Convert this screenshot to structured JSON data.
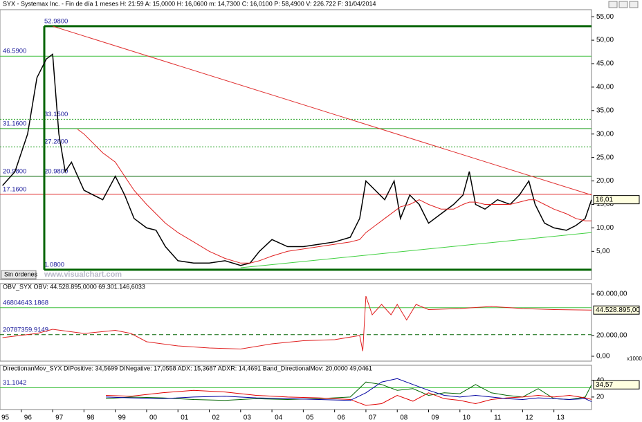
{
  "ui": {
    "button": "Sin órdenes",
    "watermark": "www.visualchart.com",
    "scale_note": "x1000"
  },
  "chart_data": [
    {
      "type": "line",
      "title": "SYX - Systemax Inc. - Fin de día 1 meses  H: 21:59  A: 15,0000  H: 16,0600  m: 14,7300  C: 16,0100  P: 58,4900  V: 226.722  F: 31/04/2014",
      "xlim": [
        1995.32,
        2014.2
      ],
      "ylim": [
        -1,
        56.5
      ],
      "yticks": [
        {
          "value": 55,
          "label": "55,00"
        },
        {
          "value": 50,
          "label": "50,00"
        },
        {
          "value": 45,
          "label": "45,00"
        },
        {
          "value": 40,
          "label": "40,00"
        },
        {
          "value": 35,
          "label": "35,00"
        },
        {
          "value": 30,
          "label": "30,00"
        },
        {
          "value": 25,
          "label": "25,00"
        },
        {
          "value": 20,
          "label": "20,00"
        },
        {
          "value": 15,
          "label": "15,00"
        },
        {
          "value": 10,
          "label": "10,00"
        },
        {
          "value": 5,
          "label": "5,00"
        }
      ],
      "x": [
        1995.4,
        1995.8,
        1996.2,
        1996.5,
        1996.8,
        1997.0,
        1997.2,
        1997.4,
        1997.6,
        1997.8,
        1998.0,
        1998.3,
        1998.6,
        1999.0,
        1999.3,
        1999.6,
        2000.0,
        2000.3,
        2000.6,
        2001.0,
        2001.5,
        2002.0,
        2002.5,
        2003.0,
        2003.3,
        2003.6,
        2004.0,
        2004.5,
        2005.0,
        2005.5,
        2006.0,
        2006.5,
        2006.8,
        2007.0,
        2007.3,
        2007.6,
        2007.9,
        2008.1,
        2008.4,
        2008.7,
        2009.0,
        2009.4,
        2009.8,
        2010.1,
        2010.3,
        2010.5,
        2010.8,
        2011.2,
        2011.6,
        2011.9,
        2012.2,
        2012.4,
        2012.7,
        2013.0,
        2013.4,
        2013.7,
        2014.0,
        2014.2
      ],
      "series": [
        {
          "color": "#000000",
          "values": [
            19,
            22,
            30,
            42,
            46,
            47,
            30,
            22,
            24,
            21,
            18,
            17,
            16,
            21,
            17,
            12,
            10,
            9.5,
            6,
            3,
            2.5,
            2.5,
            3,
            2,
            2.5,
            5,
            7.5,
            6,
            6,
            6.5,
            7,
            8,
            12,
            20,
            18,
            16,
            20,
            12,
            17,
            15,
            11,
            13,
            15,
            17,
            22,
            15,
            14,
            16,
            15,
            17,
            20,
            15,
            11,
            10,
            9.5,
            10.5,
            12,
            16
          ]
        },
        {
          "color": "#e02020",
          "values": [
            null,
            null,
            null,
            null,
            null,
            null,
            null,
            null,
            null,
            31,
            30,
            28,
            26,
            24,
            21,
            18,
            15,
            13,
            11,
            9,
            7,
            5,
            3.5,
            2.5,
            2.5,
            3,
            4,
            5,
            5.5,
            6,
            6.5,
            7,
            7.5,
            9,
            10.5,
            12,
            13.5,
            14.5,
            15,
            16,
            15,
            14,
            14,
            15,
            15.5,
            15.5,
            15,
            15,
            15,
            15.5,
            16,
            16,
            15,
            14,
            13,
            12,
            11.5,
            11.5
          ]
        }
      ],
      "levels": [
        {
          "value": 52.98,
          "label": "52.9800",
          "color": "#006400",
          "style": "box"
        },
        {
          "value": 46.59,
          "label": "46.5900",
          "color": "#40c040",
          "style": "solid"
        },
        {
          "value": 33.15,
          "label": "33.1500",
          "color": "#20a020",
          "style": "dotted"
        },
        {
          "value": 31.16,
          "label": "31.1600",
          "color": "#20a020",
          "style": "solid"
        },
        {
          "value": 27.28,
          "label": "27.2800",
          "color": "#20a020",
          "style": "dotted"
        },
        {
          "value": 20.98,
          "label": "20.9800",
          "color": "#006400",
          "style": "solid"
        },
        {
          "value": 17.16,
          "label": "17.1600",
          "color": "#e03030",
          "style": "solid"
        },
        {
          "value": 1.08,
          "label": "1.0800",
          "color": "#006400",
          "style": "box"
        }
      ],
      "trendlines": [
        {
          "color": "#e03030",
          "points": [
            [
              1997.0,
              52.98
            ],
            [
              2014.2,
              17.0
            ]
          ]
        },
        {
          "color": "#40d040",
          "points": [
            [
              2003.0,
              1.5
            ],
            [
              2014.2,
              9
            ]
          ]
        }
      ],
      "last_value": {
        "value": 16.01,
        "label": "16,01"
      }
    },
    {
      "type": "line",
      "title": "OBV_SYX  OBV: 44.528.895,0000  69.301.146,6033",
      "xlim": [
        1995.32,
        2014.2
      ],
      "ylim": [
        -4700000,
        70000000
      ],
      "yticks": [
        {
          "value": 60000000,
          "label": "60.000,00"
        },
        {
          "value": 20000000,
          "label": "20.000,00"
        },
        {
          "value": 0,
          "label": "0,00"
        }
      ],
      "x": [
        1995.4,
        1996.5,
        1997.0,
        1998.0,
        1999.0,
        1999.5,
        2000.0,
        2001.0,
        2002.0,
        2003.0,
        2004.0,
        2005.0,
        2006.0,
        2006.8,
        2006.9,
        2007.0,
        2007.2,
        2007.5,
        2007.8,
        2008.0,
        2008.3,
        2008.6,
        2009.0,
        2010.0,
        2011.0,
        2012.0,
        2013.0,
        2014.2
      ],
      "series": [
        {
          "color": "#e02020",
          "values": [
            18000000,
            22000000,
            26000000,
            22000000,
            25000000,
            22000000,
            14000000,
            10000000,
            8000000,
            7000000,
            12000000,
            15000000,
            16000000,
            20000000,
            5000000,
            58000000,
            40000000,
            50000000,
            40000000,
            50000000,
            35000000,
            50000000,
            45000000,
            46000000,
            48000000,
            46000000,
            45000000,
            44528895
          ]
        }
      ],
      "levels": [
        {
          "value": 46804643.1868,
          "label": "46804643.1868",
          "color": "#40c040",
          "style": "solid"
        },
        {
          "value": 20787359.9149,
          "label": "20787359.9149",
          "color": "#006400",
          "style": "dashed"
        }
      ],
      "last_value": {
        "value": 44528895,
        "label": "44.528.895,00"
      }
    },
    {
      "type": "line",
      "title": "DirectionanMov_SYX  DIPositive: 34,5699  DINegative: 17,0558  ADX: 15,3687  ADXR: 14,4691  Band_DirectionalMov: 20,0000  49,0461",
      "xlim": [
        1995.32,
        2014.2
      ],
      "ylim": [
        5,
        58
      ],
      "yticks": [
        20,
        40
      ],
      "xticks": [
        {
          "value": 1995,
          "label": "95"
        },
        {
          "value": 1996,
          "label": "96"
        },
        {
          "value": 1997,
          "label": "97"
        },
        {
          "value": 1998,
          "label": "98"
        },
        {
          "value": 1999,
          "label": "99"
        },
        {
          "value": 2000,
          "label": "00"
        },
        {
          "value": 2001,
          "label": "01"
        },
        {
          "value": 2002,
          "label": "02"
        },
        {
          "value": 2003,
          "label": "03"
        },
        {
          "value": 2004,
          "label": "04"
        },
        {
          "value": 2005,
          "label": "05"
        },
        {
          "value": 2006,
          "label": "06"
        },
        {
          "value": 2007,
          "label": "07"
        },
        {
          "value": 2008,
          "label": "08"
        },
        {
          "value": 2009,
          "label": "09"
        },
        {
          "value": 2010,
          "label": "10"
        },
        {
          "value": 2011,
          "label": "11"
        },
        {
          "value": 2012,
          "label": "12"
        },
        {
          "value": 2013,
          "label": "13"
        }
      ],
      "x": [
        1998.7,
        1999.5,
        2000.5,
        2001.5,
        2002.5,
        2003.5,
        2004.5,
        2005.5,
        2006.5,
        2007.0,
        2007.5,
        2008.0,
        2008.5,
        2009.0,
        2009.5,
        2010.0,
        2010.5,
        2011.0,
        2011.5,
        2012.0,
        2012.5,
        2013.0,
        2013.5,
        2014.0,
        2014.2
      ],
      "series": [
        {
          "color": "#006400",
          "values": [
            18,
            20,
            19,
            17,
            16,
            18,
            17,
            18,
            20,
            38,
            35,
            28,
            30,
            22,
            25,
            24,
            35,
            25,
            22,
            20,
            30,
            18,
            17,
            20,
            34.57
          ]
        },
        {
          "color": "#e00000",
          "values": [
            22,
            21,
            25,
            28,
            26,
            22,
            20,
            19,
            17,
            10,
            12,
            22,
            15,
            25,
            18,
            16,
            12,
            17,
            19,
            20,
            22,
            20,
            22,
            19,
            17.06
          ]
        },
        {
          "color": "#0000a0",
          "values": [
            20,
            19,
            18,
            20,
            21,
            19,
            18,
            17,
            16,
            25,
            38,
            42,
            35,
            28,
            22,
            20,
            22,
            20,
            18,
            17,
            19,
            18,
            17,
            18,
            14.47
          ]
        }
      ],
      "levels": [
        {
          "value": 31.1042,
          "label": "31.1042",
          "color": "#40c040",
          "style": "solid"
        }
      ],
      "last_value": {
        "value": 34.57,
        "label": "34,57"
      }
    }
  ]
}
